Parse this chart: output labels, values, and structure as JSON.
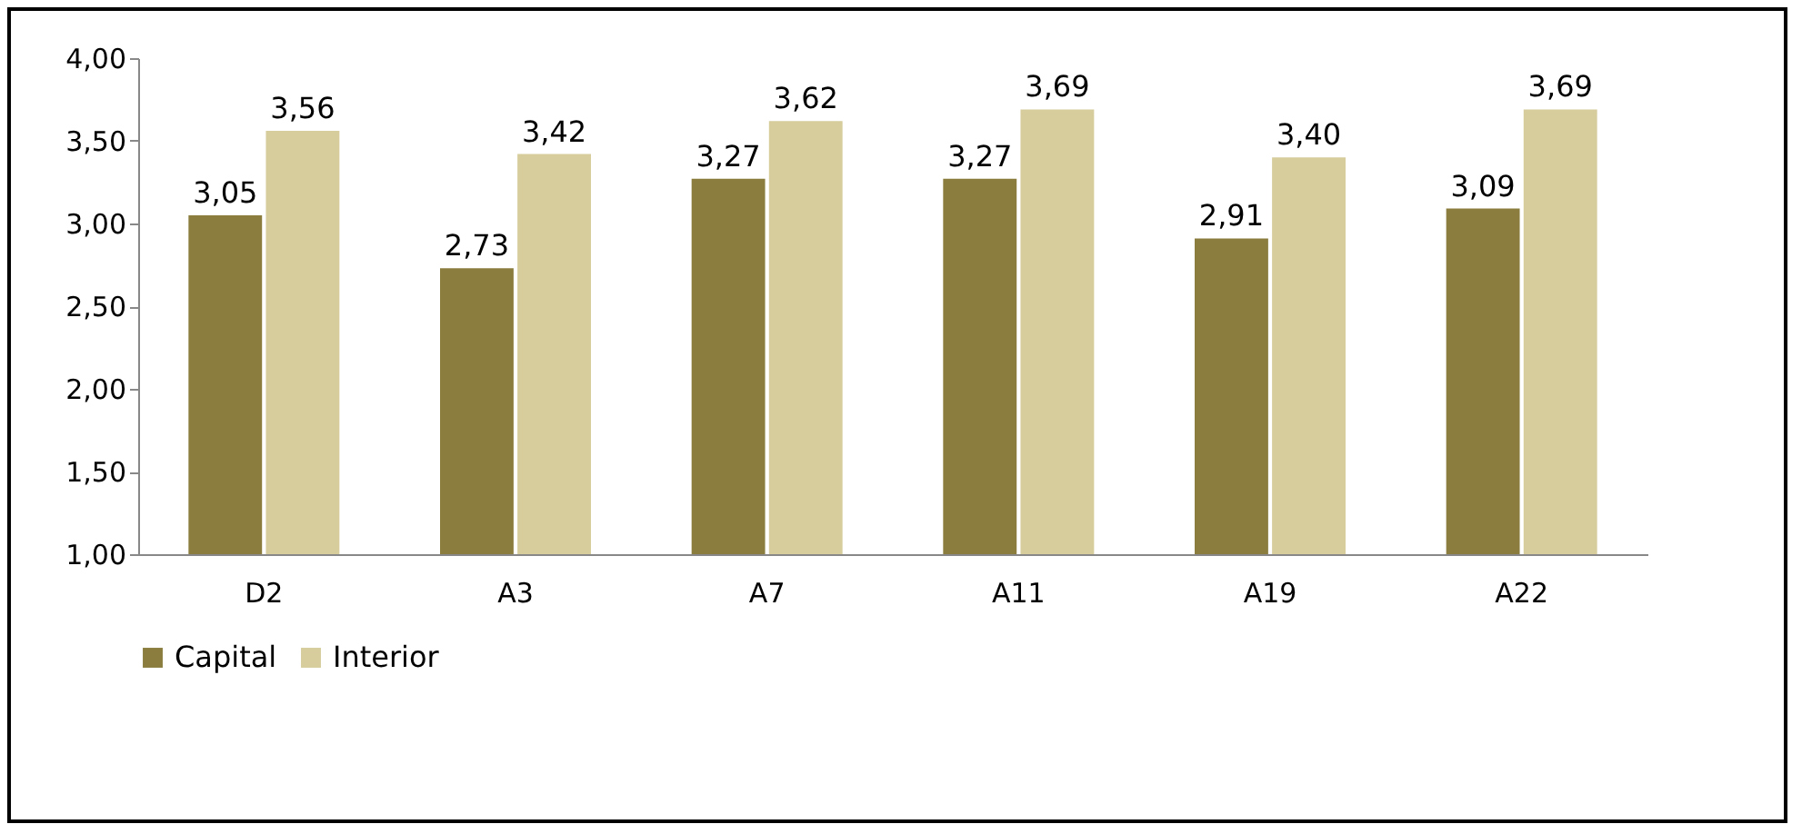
{
  "chart_data": {
    "type": "bar",
    "categories": [
      "D2",
      "A3",
      "A7",
      "A11",
      "A19",
      "A22"
    ],
    "series": [
      {
        "name": "Capital",
        "color": "#8a7d3e",
        "values": [
          3.05,
          2.73,
          3.27,
          3.27,
          2.91,
          3.09
        ],
        "value_labels": [
          "3,05",
          "2,73",
          "3,27",
          "3,27",
          "2,91",
          "3,09"
        ]
      },
      {
        "name": "Interior",
        "color": "#d6cc9c",
        "values": [
          3.56,
          3.42,
          3.62,
          3.69,
          3.4,
          3.69
        ],
        "value_labels": [
          "3,56",
          "3,42",
          "3,62",
          "3,69",
          "3,40",
          "3,69"
        ]
      }
    ],
    "ylim": [
      1,
      4
    ],
    "yticks": [
      {
        "value": 1,
        "label": "1,00"
      },
      {
        "value": 1.5,
        "label": "1,50"
      },
      {
        "value": 2,
        "label": "2,00"
      },
      {
        "value": 2.5,
        "label": "2,50"
      },
      {
        "value": 3,
        "label": "3,00"
      },
      {
        "value": 3.5,
        "label": "3,50"
      },
      {
        "value": 4,
        "label": "4,00"
      }
    ],
    "legend": "bottom"
  }
}
